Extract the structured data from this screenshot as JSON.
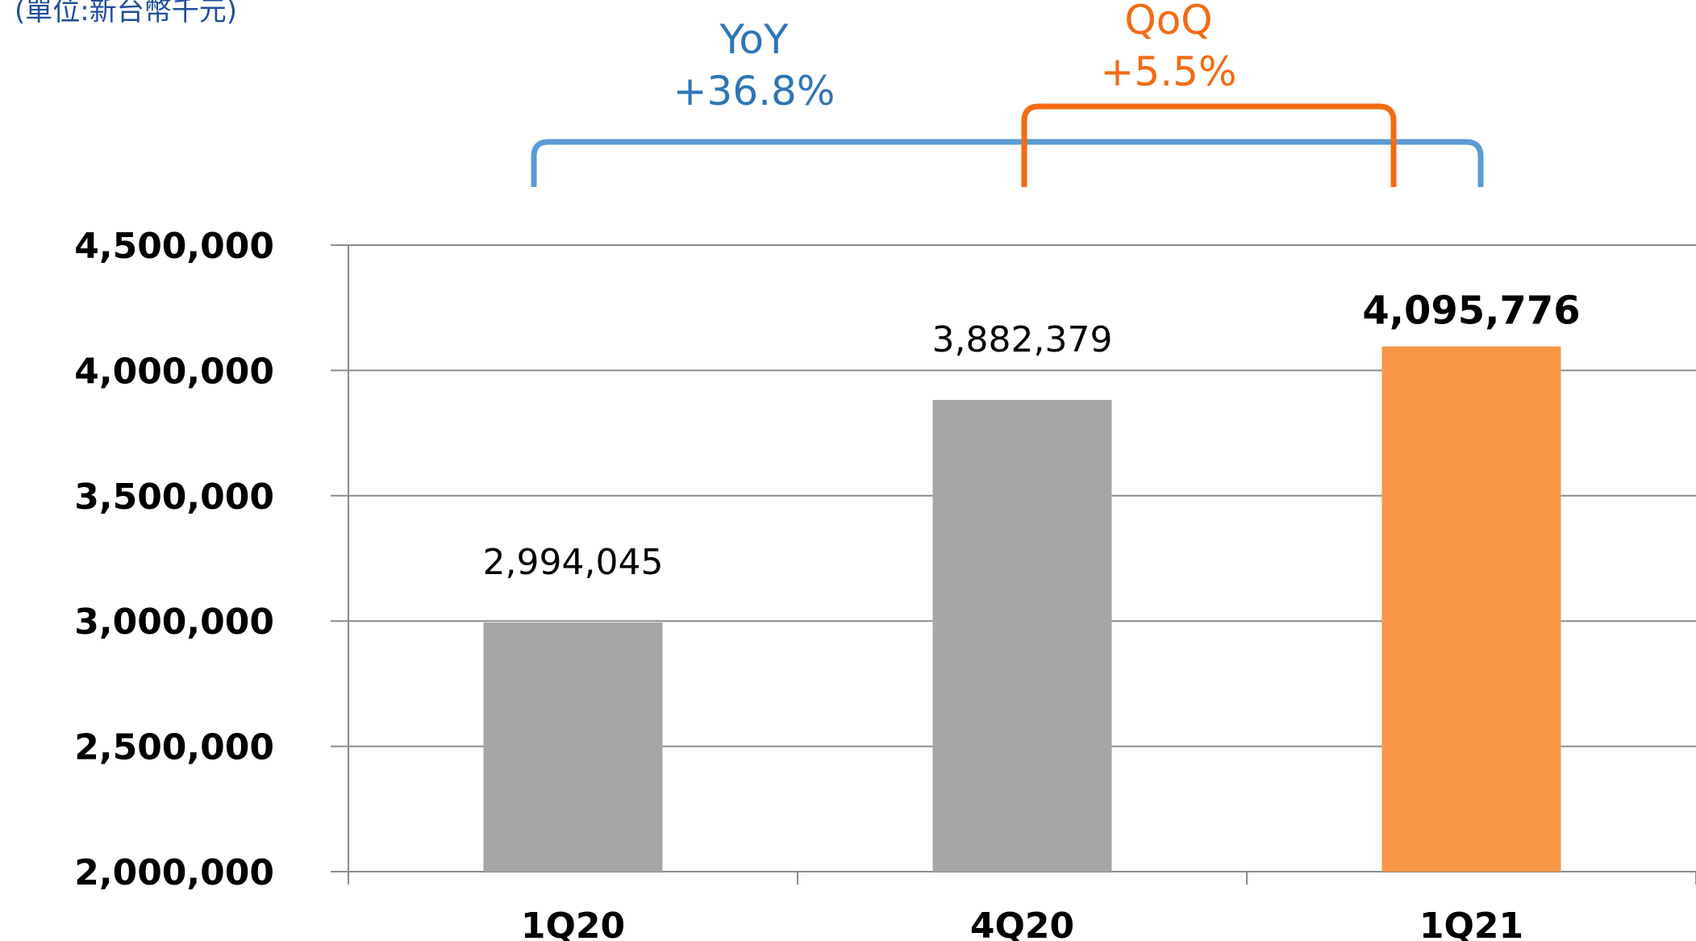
{
  "unit_label": "(單位:新台幣千元)",
  "chart_data": {
    "type": "bar",
    "categories": [
      "1Q20",
      "4Q20",
      "1Q21"
    ],
    "values": [
      2994045,
      3882379,
      4095776
    ],
    "value_labels": [
      "2,994,045",
      "3,882,379",
      "4,095,776"
    ],
    "ylim": [
      2000000,
      4500000
    ],
    "ytick_values": [
      2000000,
      2500000,
      3000000,
      3500000,
      4000000,
      4500000
    ],
    "ytick_labels": [
      "2,000,000",
      "2,500,000",
      "3,000,000",
      "3,500,000",
      "4,000,000",
      "4,500,000"
    ],
    "grid": true,
    "bar_colors": [
      "#a6a6a6",
      "#a6a6a6",
      "#f79646"
    ],
    "highlight_index": 2,
    "annotations": [
      {
        "label": "YoY",
        "value": "+36.8%",
        "from": "1Q20",
        "to": "1Q21",
        "color": "#5b9bd5",
        "text_color": "#2e75b6"
      },
      {
        "label": "QoQ",
        "value": "+5.5%",
        "from": "4Q20",
        "to": "1Q21",
        "color": "#f26b14",
        "text_color": "#f26b14"
      }
    ]
  }
}
